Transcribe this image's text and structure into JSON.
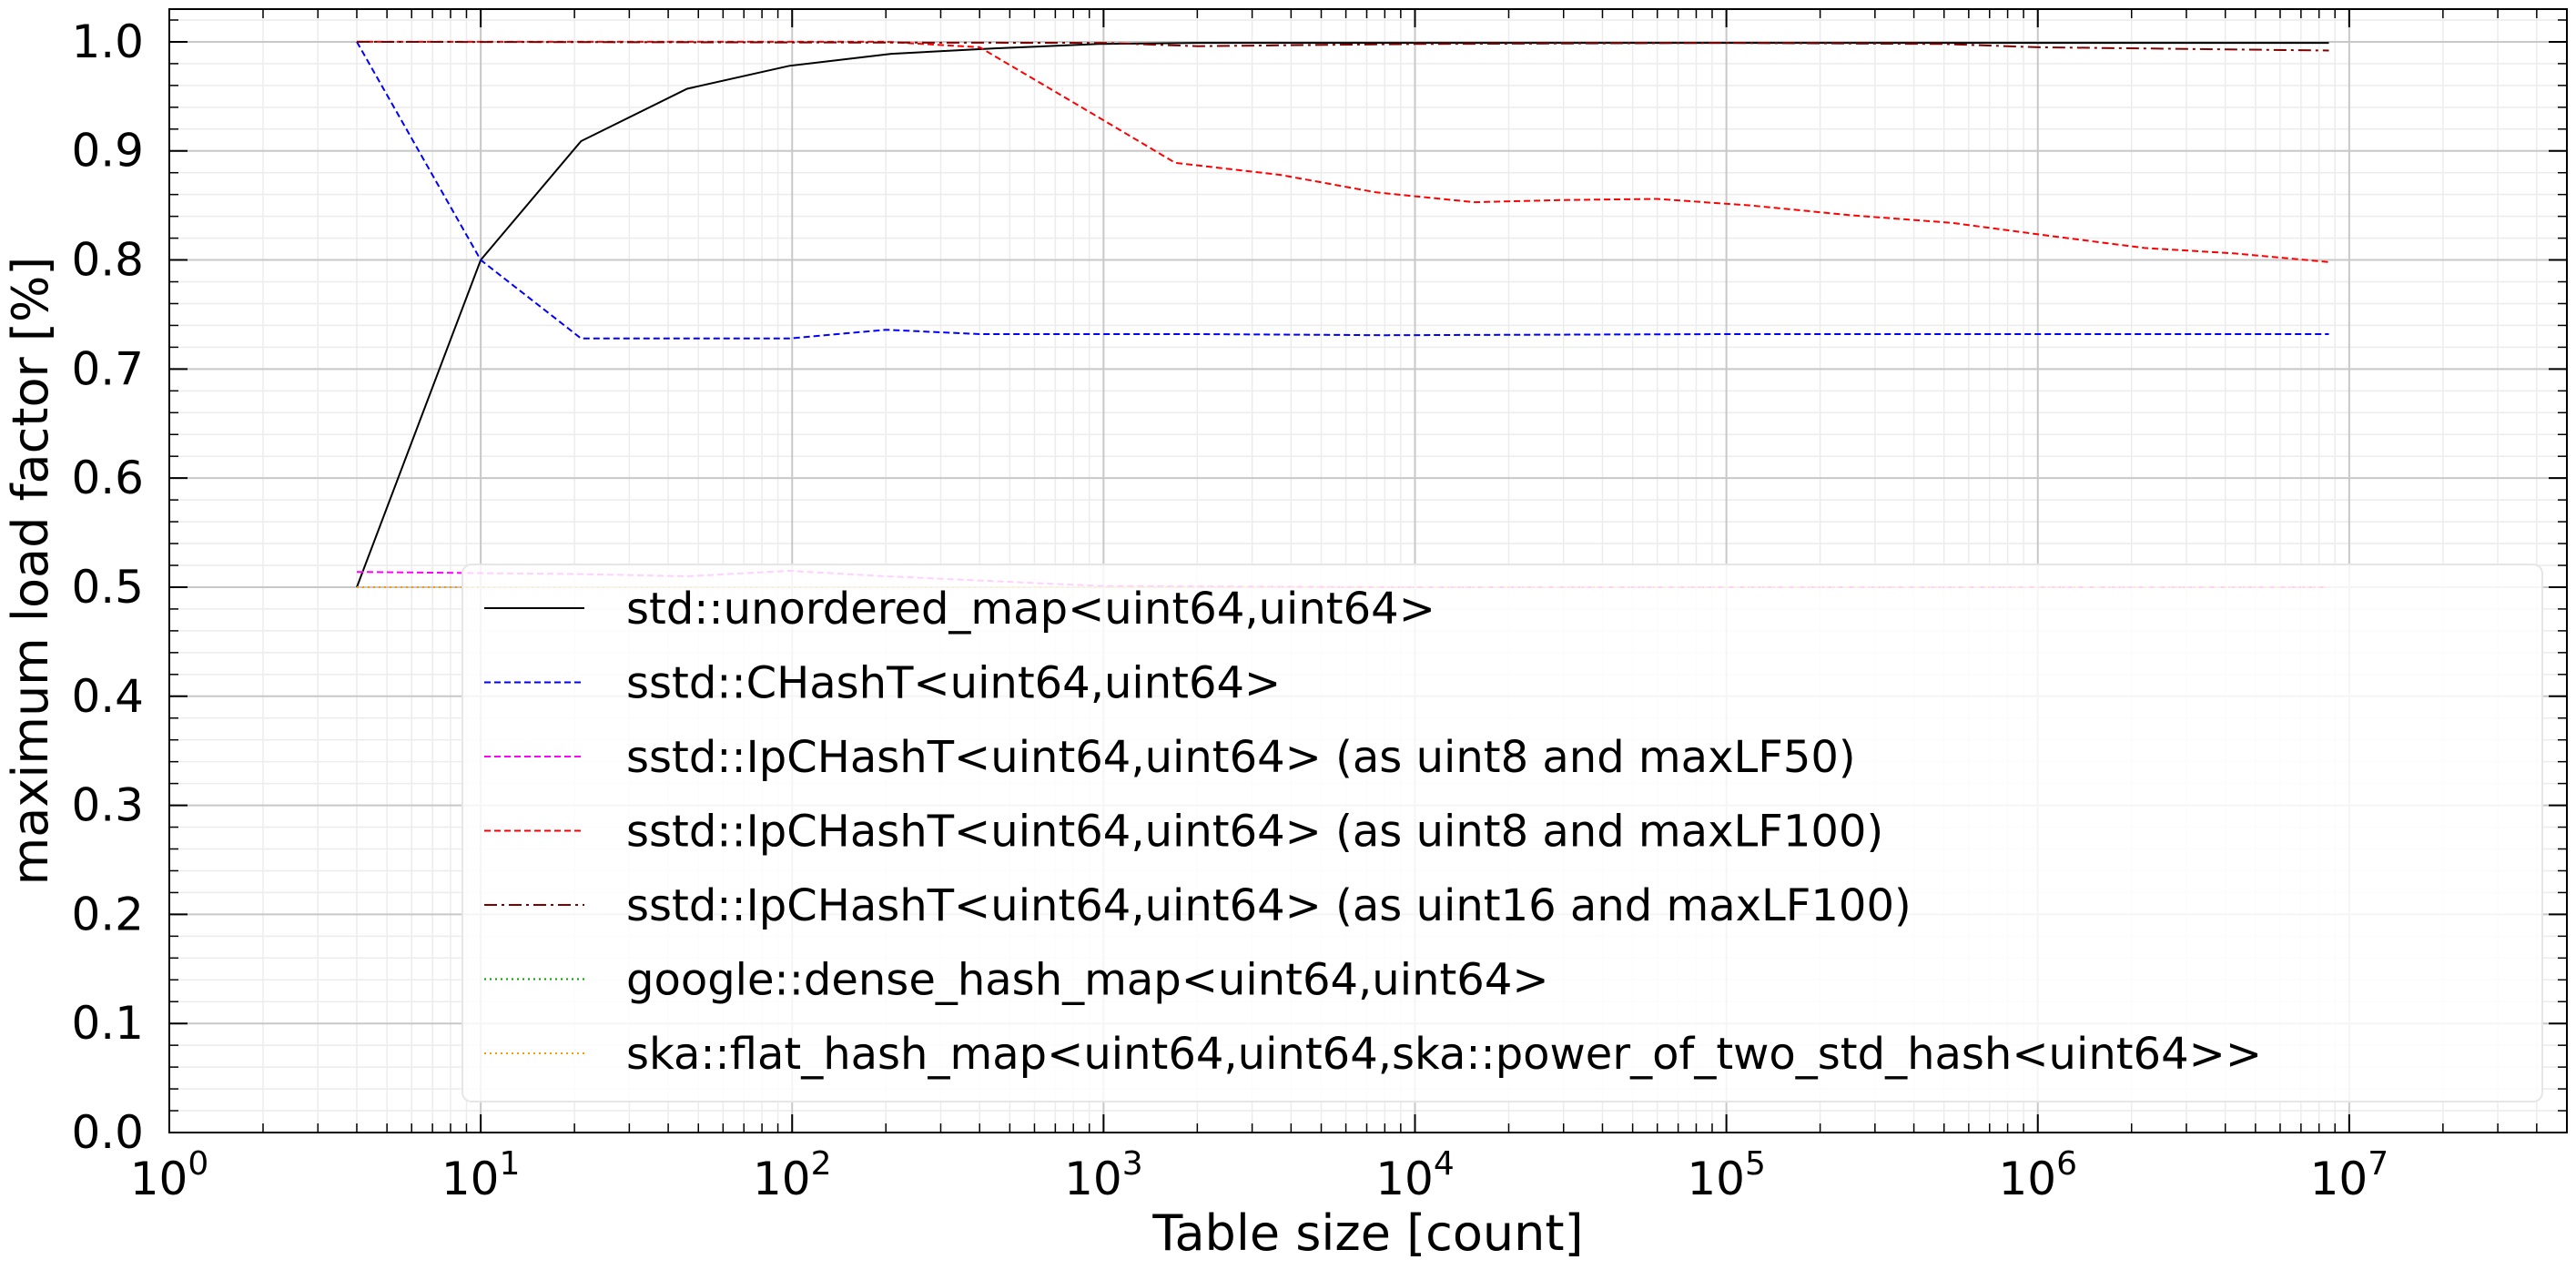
{
  "chart_data": {
    "type": "line",
    "title": "",
    "xlabel": "Table size [count]",
    "ylabel": "maximum load factor [%]",
    "xscale": "log",
    "xlim": [
      1,
      50000000
    ],
    "ylim": [
      0.0,
      1.03
    ],
    "grid": true,
    "legend_position": "lower-center",
    "x_ticks": [
      {
        "base": "10",
        "exp": "0",
        "value": 1
      },
      {
        "base": "10",
        "exp": "1",
        "value": 10
      },
      {
        "base": "10",
        "exp": "2",
        "value": 100
      },
      {
        "base": "10",
        "exp": "3",
        "value": 1000
      },
      {
        "base": "10",
        "exp": "4",
        "value": 10000
      },
      {
        "base": "10",
        "exp": "5",
        "value": 100000
      },
      {
        "base": "10",
        "exp": "6",
        "value": 1000000
      },
      {
        "base": "10",
        "exp": "7",
        "value": 10000000
      }
    ],
    "y_ticks": [
      {
        "label": "0.0",
        "value": 0.0
      },
      {
        "label": "0.1",
        "value": 0.1
      },
      {
        "label": "0.2",
        "value": 0.2
      },
      {
        "label": "0.3",
        "value": 0.3
      },
      {
        "label": "0.4",
        "value": 0.4
      },
      {
        "label": "0.5",
        "value": 0.5
      },
      {
        "label": "0.6",
        "value": 0.6
      },
      {
        "label": "0.7",
        "value": 0.7
      },
      {
        "label": "0.8",
        "value": 0.8
      },
      {
        "label": "0.9",
        "value": 0.9
      },
      {
        "label": "1.0",
        "value": 1.0
      }
    ],
    "series": [
      {
        "name": "std::unordered_map<uint64,uint64>",
        "color": "#000000",
        "dash": "solid",
        "points": [
          [
            4,
            0.5
          ],
          [
            10,
            0.8
          ],
          [
            21,
            0.909
          ],
          [
            46,
            0.957
          ],
          [
            98,
            0.978
          ],
          [
            208,
            0.989
          ],
          [
            448,
            0.994
          ],
          [
            968,
            0.998
          ],
          [
            2000,
            0.999
          ],
          [
            10000,
            0.999
          ],
          [
            100000,
            0.999
          ],
          [
            1000000,
            0.999
          ],
          [
            8600000,
            0.999
          ]
        ]
      },
      {
        "name": "sstd::CHashT<uint64,uint64>",
        "color": "#0000ff",
        "dash": "dashed",
        "points": [
          [
            4,
            1.0
          ],
          [
            10,
            0.8
          ],
          [
            21,
            0.728
          ],
          [
            46,
            0.728
          ],
          [
            98,
            0.728
          ],
          [
            200,
            0.736
          ],
          [
            400,
            0.732
          ],
          [
            2000,
            0.732
          ],
          [
            8000,
            0.731
          ],
          [
            100000,
            0.732
          ],
          [
            8600000,
            0.732
          ]
        ]
      },
      {
        "name": "sstd::IpCHashT<uint64,uint64> (as uint8 and maxLF50)",
        "color": "#ff00ff",
        "dash": "dashed",
        "points": [
          [
            4,
            0.514
          ],
          [
            21,
            0.512
          ],
          [
            46,
            0.51
          ],
          [
            98,
            0.515
          ],
          [
            200,
            0.51
          ],
          [
            1000,
            0.501
          ],
          [
            10000,
            0.5
          ],
          [
            100000,
            0.5
          ],
          [
            8600000,
            0.5
          ]
        ]
      },
      {
        "name": "sstd::IpCHashT<uint64,uint64> (as uint8 and maxLF100)",
        "color": "#ff0000",
        "dash": "dashed",
        "points": [
          [
            4,
            1.0
          ],
          [
            100,
            1.0
          ],
          [
            200,
            1.0
          ],
          [
            400,
            0.995
          ],
          [
            850,
            0.94
          ],
          [
            1700,
            0.889
          ],
          [
            3700,
            0.878
          ],
          [
            7500,
            0.862
          ],
          [
            15500,
            0.853
          ],
          [
            30000,
            0.855
          ],
          [
            60000,
            0.856
          ],
          [
            120000,
            0.85
          ],
          [
            250000,
            0.841
          ],
          [
            530000,
            0.834
          ],
          [
            1100000,
            0.822
          ],
          [
            2200000,
            0.811
          ],
          [
            4300000,
            0.806
          ],
          [
            8600000,
            0.798
          ]
        ]
      },
      {
        "name": "sstd::IpCHashT<uint64,uint64> (as uint16 and maxLF100)",
        "color": "#800000",
        "dash": "dashdot",
        "points": [
          [
            4,
            1.0
          ],
          [
            1000,
            0.999
          ],
          [
            2000,
            0.996
          ],
          [
            10000,
            0.998
          ],
          [
            100000,
            0.999
          ],
          [
            500000,
            0.998
          ],
          [
            1000000,
            0.995
          ],
          [
            8600000,
            0.992
          ]
        ]
      },
      {
        "name": "google::dense_hash_map<uint64,uint64>",
        "color": "#00a000",
        "dash": "dotted",
        "points": [
          [
            4,
            0.5
          ],
          [
            8600000,
            0.5
          ]
        ]
      },
      {
        "name": "ska::flat_hash_map<uint64,uint64,ska::power_of_two_std_hash<uint64>>",
        "color": "#ff9900",
        "dash": "dotted",
        "points": [
          [
            4,
            0.5
          ],
          [
            8600000,
            0.5
          ]
        ]
      }
    ]
  }
}
